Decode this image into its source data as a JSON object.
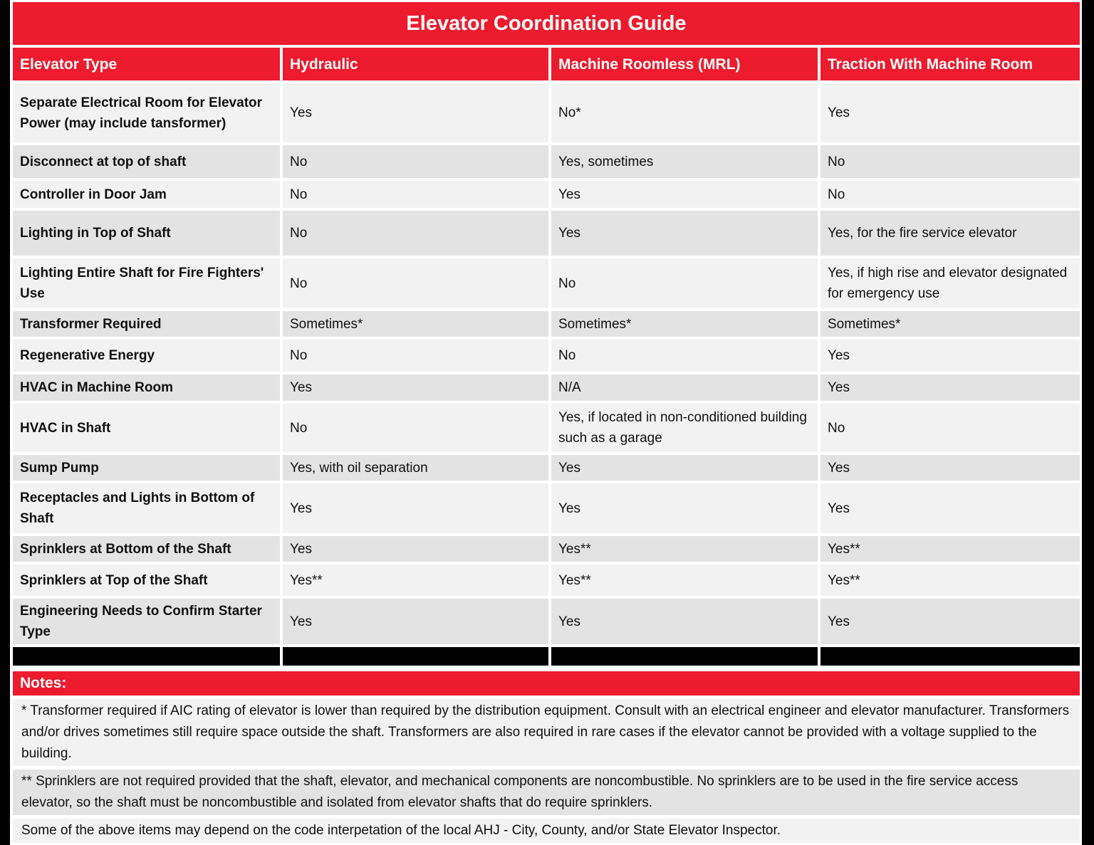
{
  "title": "Elevator Coordination Guide",
  "table": {
    "columns": [
      "Elevator Type",
      "Hydraulic",
      "Machine Roomless (MRL)",
      "Traction With Machine Room"
    ],
    "rows": [
      {
        "label": "Separate Electrical Room for Elevator Power (may include tansformer)",
        "values": [
          "Yes",
          "No*",
          "Yes"
        ]
      },
      {
        "label": "Disconnect at top of shaft",
        "values": [
          "No",
          "Yes, sometimes",
          "No"
        ]
      },
      {
        "label": "Controller in Door Jam",
        "values": [
          "No",
          "Yes",
          "No"
        ]
      },
      {
        "label": "Lighting in Top of Shaft",
        "values": [
          "No",
          "Yes",
          "Yes, for the fire service elevator"
        ]
      },
      {
        "label": "Lighting Entire Shaft for Fire Fighters' Use",
        "values": [
          "No",
          "No",
          "Yes, if high rise and elevator designated for emergency use"
        ]
      },
      {
        "label": "Transformer Required",
        "values": [
          "Sometimes*",
          "Sometimes*",
          "Sometimes*"
        ]
      },
      {
        "label": "Regenerative Energy",
        "values": [
          "No",
          "No",
          "Yes"
        ]
      },
      {
        "label": "HVAC in Machine Room",
        "values": [
          "Yes",
          "N/A",
          "Yes"
        ]
      },
      {
        "label": "HVAC in Shaft",
        "values": [
          "No",
          "Yes, if located in non-conditioned building such as a garage",
          "No"
        ]
      },
      {
        "label": "Sump Pump",
        "values": [
          "Yes, with oil separation",
          "Yes",
          "Yes"
        ]
      },
      {
        "label": "Receptacles and Lights in Bottom of Shaft",
        "values": [
          "Yes",
          "Yes",
          "Yes"
        ]
      },
      {
        "label": "Sprinklers at Bottom of the Shaft",
        "values": [
          "Yes",
          "Yes**",
          "Yes**"
        ]
      },
      {
        "label": "Sprinklers at Top of the Shaft",
        "values": [
          "Yes**",
          "Yes**",
          "Yes**"
        ]
      },
      {
        "label": "Engineering Needs to Confirm Starter Type",
        "values": [
          "Yes",
          "Yes",
          "Yes"
        ]
      }
    ]
  },
  "notes": {
    "header": "Notes:",
    "items": [
      "* Transformer required if AIC rating of elevator is lower than required by the distribution equipment. Consult with an electrical engineer and elevator manufacturer. Transformers and/or drives sometimes still require space outside the shaft. Transformers are also required in rare cases if the elevator cannot be provided with a voltage supplied to the building.",
      "** Sprinklers are not required provided that the shaft, elevator, and mechanical components are noncombustible. No sprinklers are to be used in the fire service access elevator, so the shaft must be noncombustible and isolated from elevator shafts that do require sprinklers.",
      "Some of the above items may depend on the code interpetation of the local AHJ - City, County, and/or State Elevator Inspector."
    ]
  },
  "colors": {
    "accent_red": "#EC1B2E",
    "row_light": "#F2F2F2",
    "row_dark": "#E3E3E3",
    "separator_black": "#000000",
    "header_text": "#FFFFFF",
    "body_text": "#111111"
  }
}
